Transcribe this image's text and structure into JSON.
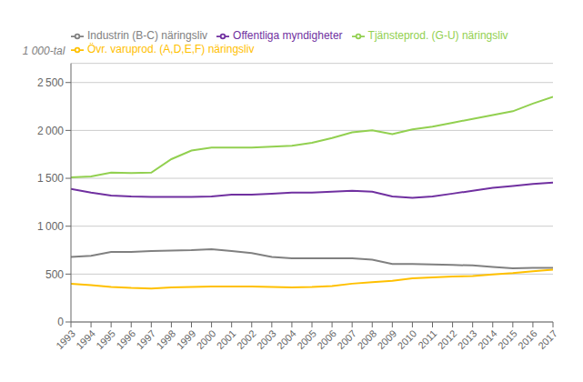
{
  "chart_data": {
    "type": "line",
    "ylabel": "1 000-tal",
    "x": [
      1993,
      1994,
      1995,
      1996,
      1997,
      1998,
      1999,
      2000,
      2001,
      2002,
      2003,
      2004,
      2005,
      2006,
      2007,
      2008,
      2009,
      2010,
      2011,
      2012,
      2013,
      2014,
      2015,
      2016,
      2017
    ],
    "series": [
      {
        "name": "Tjänsteprod. (G-U) näringsliv",
        "color": "#92d050",
        "values": [
          1510,
          1520,
          1560,
          1555,
          1560,
          1700,
          1790,
          1820,
          1820,
          1820,
          1830,
          1840,
          1870,
          1920,
          1980,
          2000,
          1960,
          2010,
          2040,
          2080,
          2120,
          2160,
          2200,
          2280,
          2350
        ]
      },
      {
        "name": "Offentliga myndigheter",
        "color": "#7030a0",
        "values": [
          1390,
          1350,
          1320,
          1310,
          1305,
          1305,
          1305,
          1310,
          1330,
          1330,
          1340,
          1350,
          1350,
          1360,
          1370,
          1360,
          1310,
          1295,
          1310,
          1340,
          1370,
          1400,
          1420,
          1440,
          1455
        ]
      },
      {
        "name": "Industrin (B-C) näringsliv",
        "color": "#808080",
        "values": [
          680,
          690,
          730,
          730,
          740,
          745,
          750,
          760,
          740,
          720,
          680,
          665,
          665,
          665,
          665,
          650,
          605,
          605,
          600,
          595,
          590,
          575,
          560,
          565,
          565
        ]
      },
      {
        "name": "Övr. varuprod. (A,D,E,F) näringsliv",
        "color": "#ffc000",
        "values": [
          400,
          385,
          365,
          355,
          350,
          360,
          365,
          370,
          370,
          370,
          365,
          360,
          365,
          375,
          400,
          415,
          430,
          455,
          465,
          475,
          480,
          495,
          510,
          530,
          545
        ]
      }
    ],
    "xlim": [
      1993,
      2017
    ],
    "xticks": [
      1993,
      1994,
      1995,
      1996,
      1997,
      1998,
      1999,
      2000,
      2001,
      2002,
      2003,
      2004,
      2005,
      2006,
      2007,
      2008,
      2009,
      2010,
      2011,
      2012,
      2013,
      2014,
      2015,
      2016,
      2017
    ],
    "ylim": [
      0,
      2700
    ],
    "yticks": [
      0,
      500,
      {
        "value": 1000,
        "label": "1 000"
      },
      {
        "value": 1500,
        "label": "1 500"
      },
      {
        "value": 2000,
        "label": "2 000"
      },
      {
        "value": 2500,
        "label": "2 500"
      }
    ],
    "grid": true,
    "legend": "top"
  }
}
